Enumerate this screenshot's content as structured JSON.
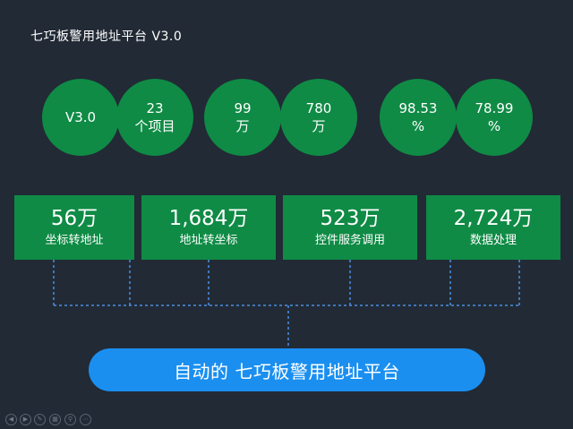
{
  "title": "七巧板警用地址平台 V3.0",
  "stats_circles": [
    {
      "line1": "V3.0",
      "line2": ""
    },
    {
      "line1": "23",
      "line2": "个项目"
    },
    {
      "line1": "99",
      "line2": "万"
    },
    {
      "line1": "780",
      "line2": "万"
    },
    {
      "line1": "98.53",
      "line2": "%"
    },
    {
      "line1": "78.99",
      "line2": "%"
    }
  ],
  "feature_boxes": [
    {
      "value": "56万",
      "label": "坐标转地址"
    },
    {
      "value": "1,684万",
      "label": "地址转坐标"
    },
    {
      "value": "523万",
      "label": "控件服务调用"
    },
    {
      "value": "2,724万",
      "label": "数据处理"
    }
  ],
  "banner": "自动的  七巧板警用地址平台",
  "controls": {
    "prev_icon": "◀",
    "next_icon": "▶",
    "pen_icon": "✎",
    "slides_icon": "▦",
    "zoom_icon": "⚲",
    "more_icon": "⋯"
  },
  "colors": {
    "background": "#222a35",
    "circle_green": "#0f8b45",
    "box_green": "#0f8b45",
    "pill_blue": "#1a8ff0",
    "connector_blue": "#4a90e2"
  }
}
